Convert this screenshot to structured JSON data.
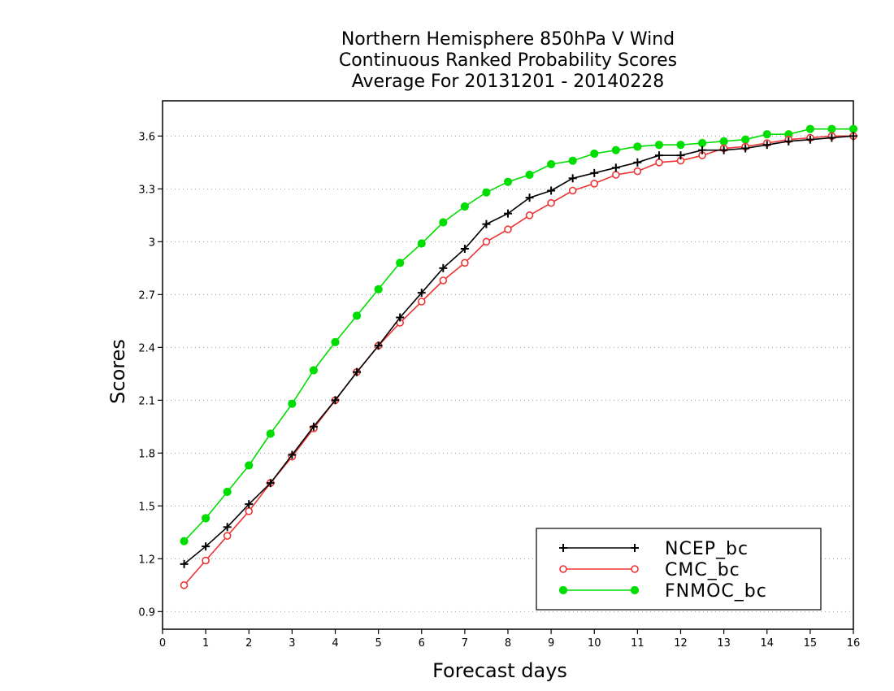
{
  "chart_data": {
    "type": "line",
    "title": [
      "Northern Hemisphere 850hPa V Wind",
      "Continuous Ranked Probability Scores",
      "Average For 20131201 - 20140228"
    ],
    "xlabel": "Forecast days",
    "ylabel": "Scores",
    "xlim": [
      0,
      16
    ],
    "ylim": [
      0.8,
      3.8
    ],
    "xticks": [
      0,
      1,
      2,
      3,
      4,
      5,
      6,
      7,
      8,
      9,
      10,
      11,
      12,
      13,
      14,
      15,
      16
    ],
    "yticks": [
      0.9,
      1.2,
      1.5,
      1.8,
      2.1,
      2.4,
      2.7,
      3,
      3.3,
      3.6
    ],
    "ytick_labels": [
      "0.9",
      "1.2",
      "1.5",
      "1.8",
      "2.1",
      "2.4",
      "2.7",
      "3",
      "3.3",
      "3.6"
    ],
    "grid": "dotted horizontal",
    "legend_position": "bottom-right",
    "x": [
      0.5,
      1,
      1.5,
      2,
      2.5,
      3,
      3.5,
      4,
      4.5,
      5,
      5.5,
      6,
      6.5,
      7,
      7.5,
      8,
      8.5,
      9,
      9.5,
      10,
      10.5,
      11,
      11.5,
      12,
      12.5,
      13,
      13.5,
      14,
      14.5,
      15,
      15.5,
      16
    ],
    "series": [
      {
        "name": "NCEP_bc",
        "color": "#000000",
        "marker": "plus",
        "values": [
          1.17,
          1.27,
          1.38,
          1.51,
          1.63,
          1.79,
          1.95,
          2.1,
          2.26,
          2.41,
          2.57,
          2.71,
          2.85,
          2.96,
          3.1,
          3.16,
          3.25,
          3.29,
          3.36,
          3.39,
          3.42,
          3.45,
          3.49,
          3.49,
          3.52,
          3.52,
          3.53,
          3.55,
          3.57,
          3.58,
          3.59,
          3.6
        ]
      },
      {
        "name": "CMC_bc",
        "color": "#ee3333",
        "marker": "open-circle",
        "values": [
          1.05,
          1.19,
          1.33,
          1.47,
          1.63,
          1.78,
          1.94,
          2.1,
          2.26,
          2.41,
          2.54,
          2.66,
          2.78,
          2.88,
          3.0,
          3.07,
          3.15,
          3.22,
          3.29,
          3.33,
          3.38,
          3.4,
          3.45,
          3.46,
          3.49,
          3.53,
          3.54,
          3.56,
          3.58,
          3.59,
          3.6,
          3.6
        ]
      },
      {
        "name": "FNMOC_bc",
        "color": "#00dd00",
        "marker": "filled-circle",
        "values": [
          1.3,
          1.43,
          1.58,
          1.73,
          1.91,
          2.08,
          2.27,
          2.43,
          2.58,
          2.73,
          2.88,
          2.99,
          3.11,
          3.2,
          3.28,
          3.34,
          3.38,
          3.44,
          3.46,
          3.5,
          3.52,
          3.54,
          3.55,
          3.55,
          3.56,
          3.57,
          3.58,
          3.61,
          3.61,
          3.64,
          3.64,
          3.64
        ]
      }
    ]
  }
}
